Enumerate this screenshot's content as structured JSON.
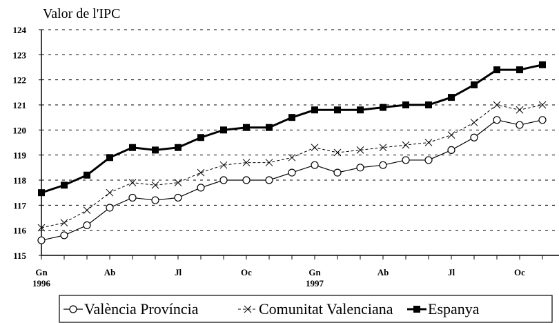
{
  "chart_data": {
    "type": "line",
    "y_label": "Valor de l'IPC",
    "categories": [
      "Gn",
      null,
      null,
      "Ab",
      null,
      null,
      "Jl",
      null,
      null,
      "Oc",
      null,
      null,
      "Gn",
      null,
      null,
      "Ab",
      null,
      null,
      "Jl",
      null,
      null,
      "Oc",
      null
    ],
    "category_years": [
      "1996",
      null,
      null,
      null,
      null,
      null,
      null,
      null,
      null,
      null,
      null,
      null,
      "1997",
      null,
      null,
      null,
      null,
      null,
      null,
      null,
      null,
      null,
      null
    ],
    "ylim": [
      115,
      124
    ],
    "yticks": [
      115,
      116,
      117,
      118,
      119,
      120,
      121,
      122,
      123,
      124
    ],
    "grid": true,
    "series": [
      {
        "name": "València Província",
        "color": "#000000",
        "marker": "circle",
        "values": [
          115.6,
          115.8,
          116.2,
          116.9,
          117.3,
          117.2,
          117.3,
          117.7,
          118.0,
          118.0,
          118.0,
          118.3,
          118.6,
          118.3,
          118.5,
          118.6,
          118.8,
          118.8,
          119.2,
          119.7,
          120.4,
          120.2,
          120.4
        ]
      },
      {
        "name": "Comunitat Valenciana",
        "color": "#000000",
        "marker": "x",
        "values": [
          116.1,
          116.3,
          116.8,
          117.5,
          117.9,
          117.8,
          117.9,
          118.3,
          118.6,
          118.7,
          118.7,
          118.9,
          119.3,
          119.1,
          119.2,
          119.3,
          119.4,
          119.5,
          119.8,
          120.3,
          121.0,
          120.8,
          121.0
        ]
      },
      {
        "name": "Espanya",
        "color": "#000000",
        "marker": "square",
        "values": [
          117.5,
          117.8,
          118.2,
          118.9,
          119.3,
          119.2,
          119.3,
          119.7,
          120.0,
          120.1,
          120.1,
          120.5,
          120.8,
          120.8,
          120.8,
          120.9,
          121.0,
          121.0,
          121.3,
          121.8,
          122.4,
          122.4,
          122.6
        ]
      }
    ]
  }
}
